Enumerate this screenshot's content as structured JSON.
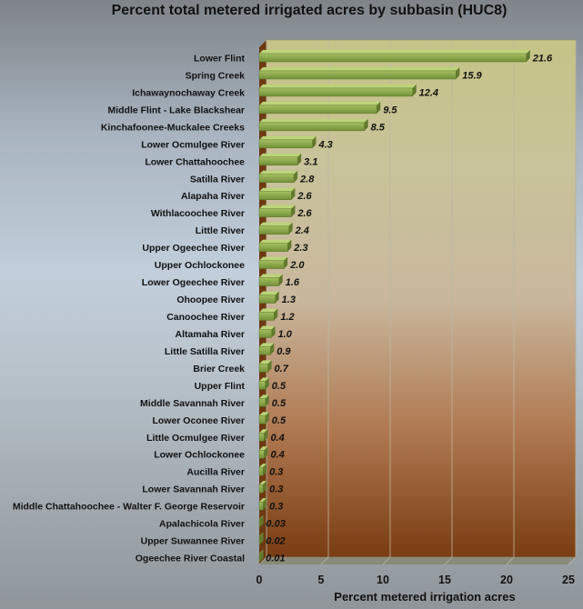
{
  "chart_data": {
    "type": "bar",
    "orientation": "horizontal",
    "title": "Percent total metered irrigated acres by subbasin (HUC8)",
    "xlabel": "Percent metered irrigation acres",
    "ylabel": "",
    "xlim": [
      0,
      25
    ],
    "xticks": [
      "0",
      "5",
      "10",
      "15",
      "20",
      "25"
    ],
    "grid": true,
    "bar_color": "#8faa4a",
    "categories": [
      "Lower Flint",
      "Spring Creek",
      "Ichawaynochaway Creek",
      "Middle Flint - Lake Blackshear",
      "Kinchafoonee-Muckalee Creeks",
      "Lower Ocmulgee River",
      "Lower Chattahoochee",
      "Satilla River",
      "Alapaha River",
      "Withlacoochee River",
      "Little River",
      "Upper Ogeechee River",
      "Upper Ochlockonee",
      "Lower Ogeechee River",
      "Ohoopee River",
      "Canoochee River",
      "Altamaha River",
      "Little Satilla River",
      "Brier Creek",
      "Upper Flint",
      "Middle Savannah River",
      "Lower Oconee River",
      "Little Ocmulgee River",
      "Lower Ochlockonee",
      "Aucilla River",
      "Lower Savannah River",
      "Middle Chattahoochee - Walter F. George Reservoir",
      "Apalachicola River",
      "Upper Suwannee River",
      "Ogeechee River Coastal"
    ],
    "values": [
      21.6,
      15.9,
      12.4,
      9.5,
      8.5,
      4.3,
      3.1,
      2.8,
      2.6,
      2.6,
      2.4,
      2.3,
      2.0,
      1.6,
      1.3,
      1.2,
      1.0,
      0.9,
      0.7,
      0.5,
      0.5,
      0.5,
      0.4,
      0.4,
      0.3,
      0.3,
      0.3,
      0.03,
      0.02,
      0.01
    ],
    "value_labels": [
      "21.6",
      "15.9",
      "12.4",
      "9.5",
      "8.5",
      "4.3",
      "3.1",
      "2.8",
      "2.6",
      "2.6",
      "2.4",
      "2.3",
      "2.0",
      "1.6",
      "1.3",
      "1.2",
      "1.0",
      "0.9",
      "0.7",
      "0.5",
      "0.5",
      "0.5",
      "0.4",
      "0.4",
      "0.3",
      "0.3",
      "0.3",
      "0.03",
      "0.02",
      "0.01"
    ]
  }
}
